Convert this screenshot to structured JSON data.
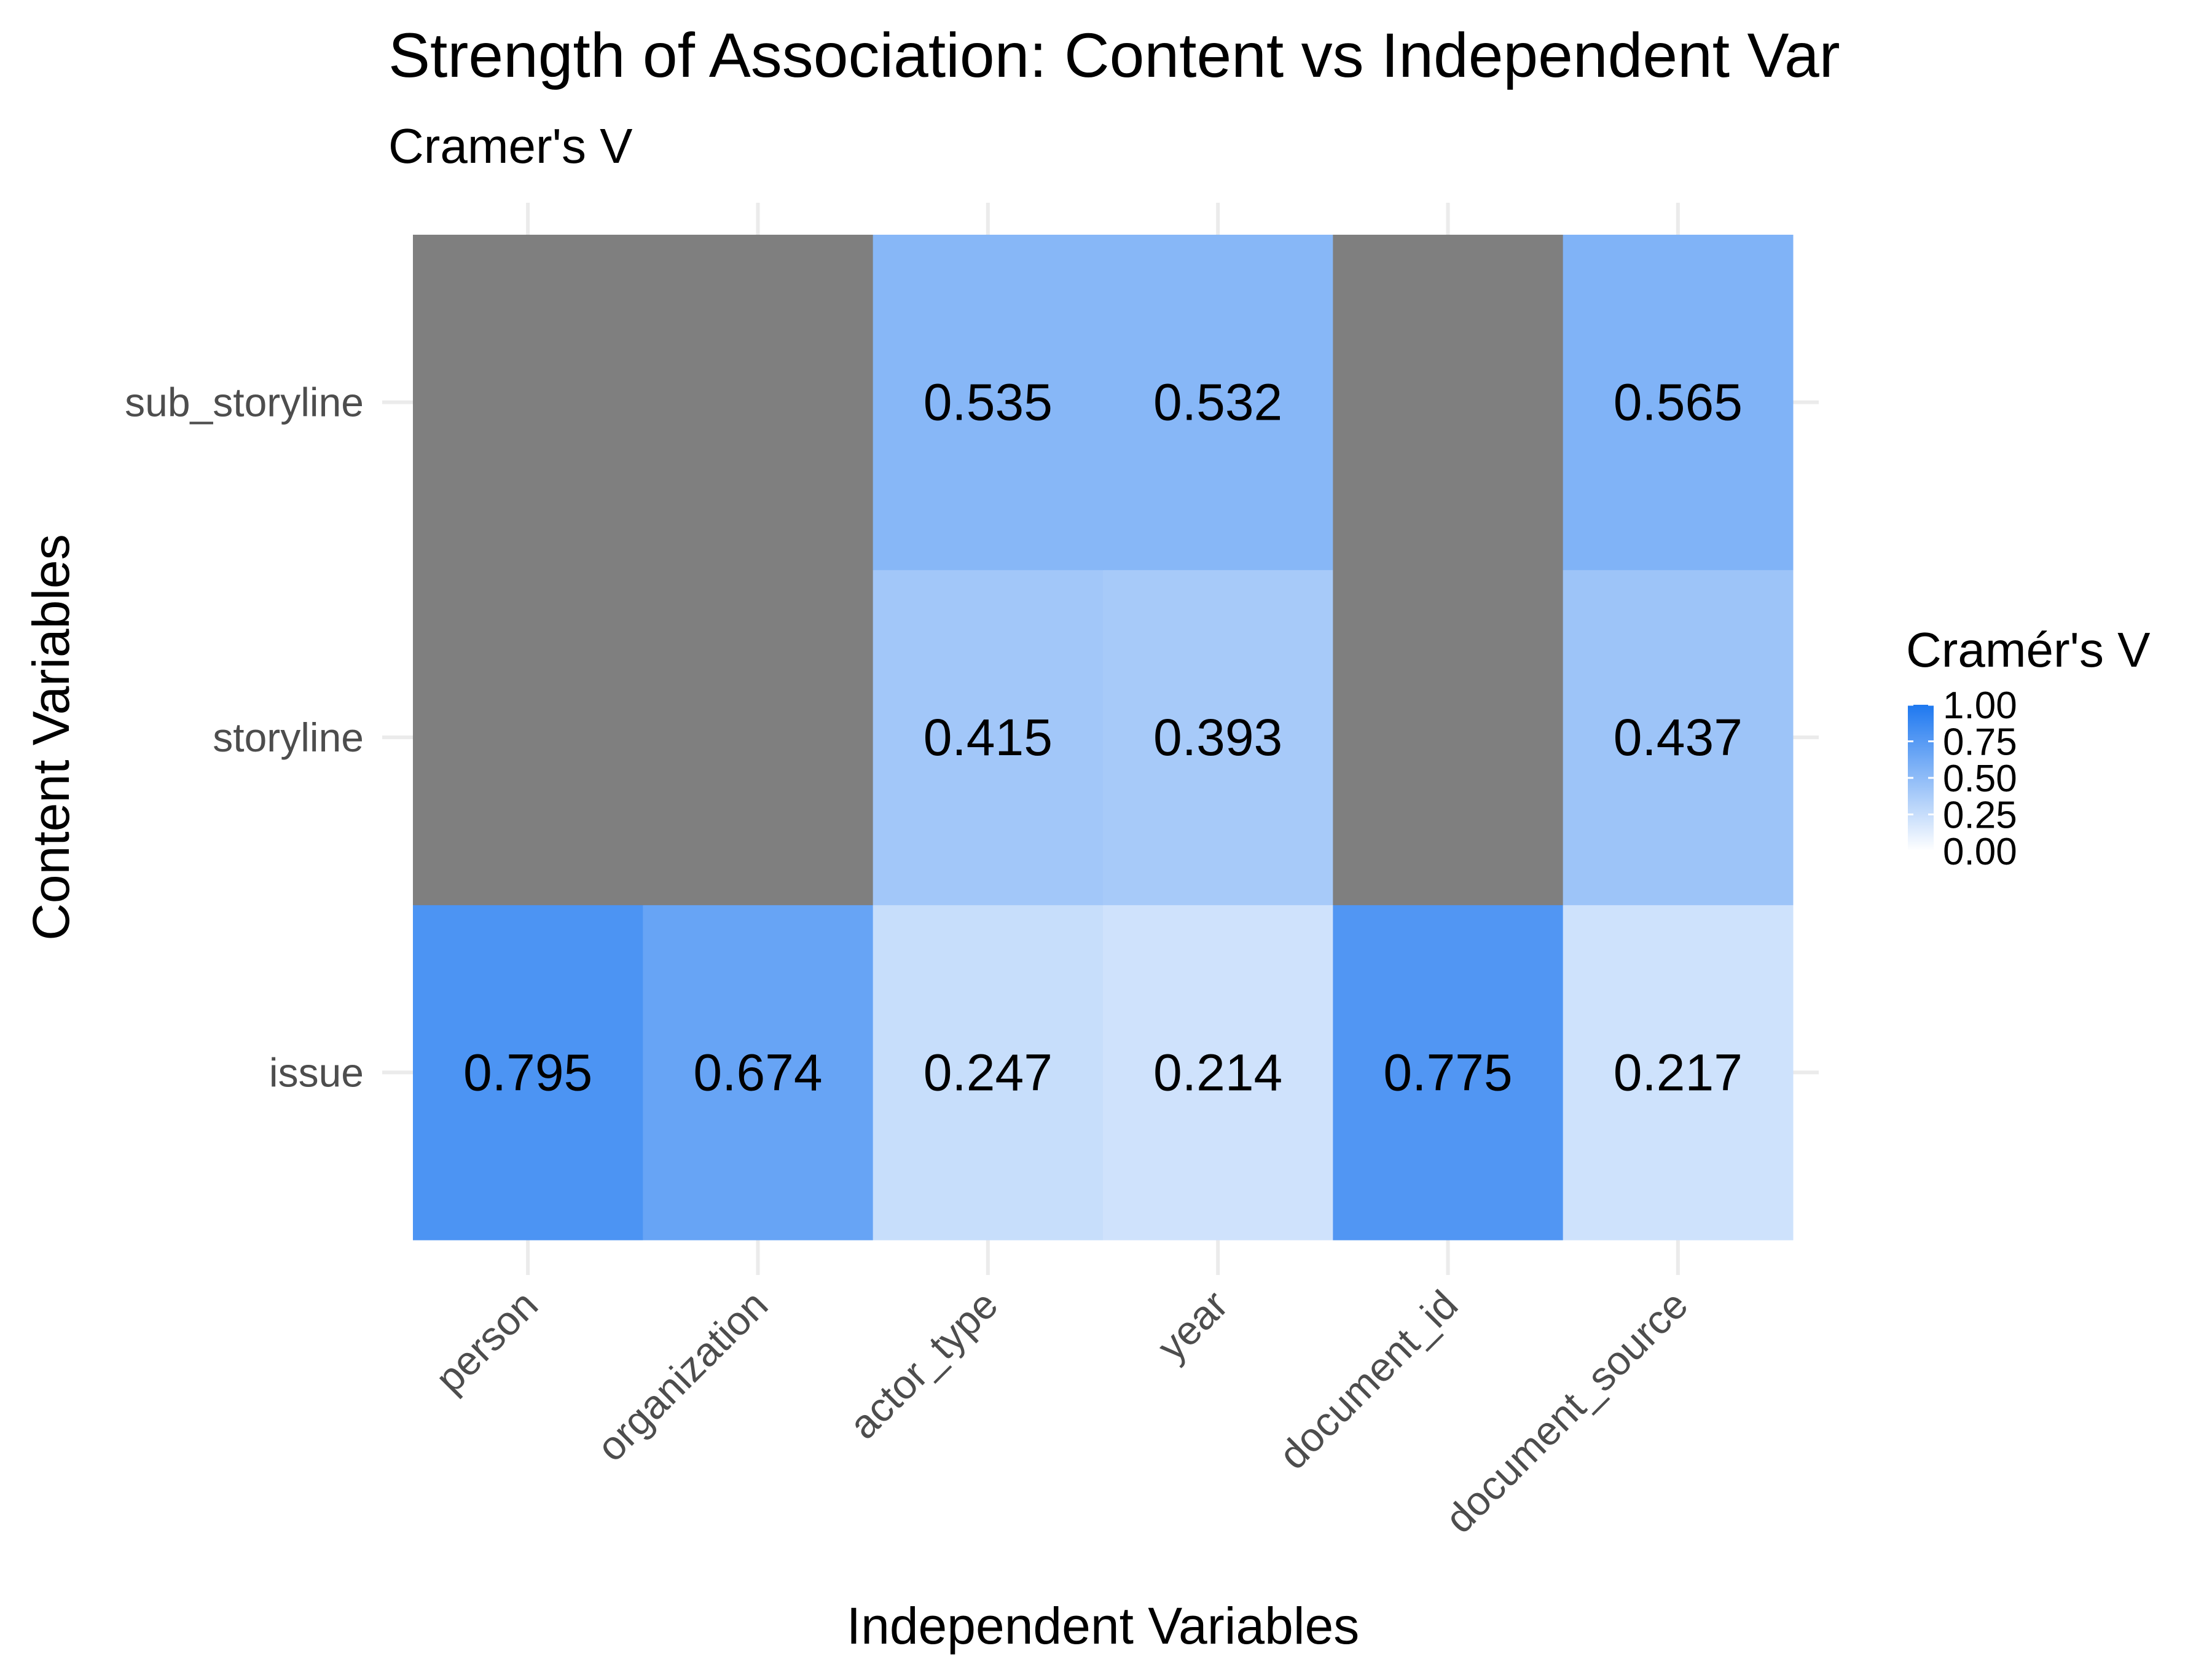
{
  "chart_data": {
    "type": "heatmap",
    "title": "Strength of Association: Content vs Independent Var",
    "subtitle": "Cramer's V",
    "xlabel": "Independent Variables",
    "ylabel": "Content Variables",
    "x_categories": [
      "person",
      "organization",
      "actor_type",
      "year",
      "document_id",
      "document_source"
    ],
    "y_categories": [
      "issue",
      "storyline",
      "sub_storyline"
    ],
    "values": [
      [
        0.795,
        0.674,
        0.247,
        0.214,
        0.775,
        0.217
      ],
      [
        null,
        null,
        0.415,
        0.393,
        null,
        0.437
      ],
      [
        null,
        null,
        0.535,
        0.532,
        null,
        0.565
      ]
    ],
    "legend": {
      "title": "Cramér's V",
      "ticks": [
        "1.00",
        "0.75",
        "0.50",
        "0.25",
        "0.00"
      ],
      "range": [
        0,
        1
      ],
      "low_color": "#ffffff",
      "high_color": "#1e78f0",
      "na_color": "#7f7f7f",
      "placement": "right"
    },
    "grid": true
  }
}
